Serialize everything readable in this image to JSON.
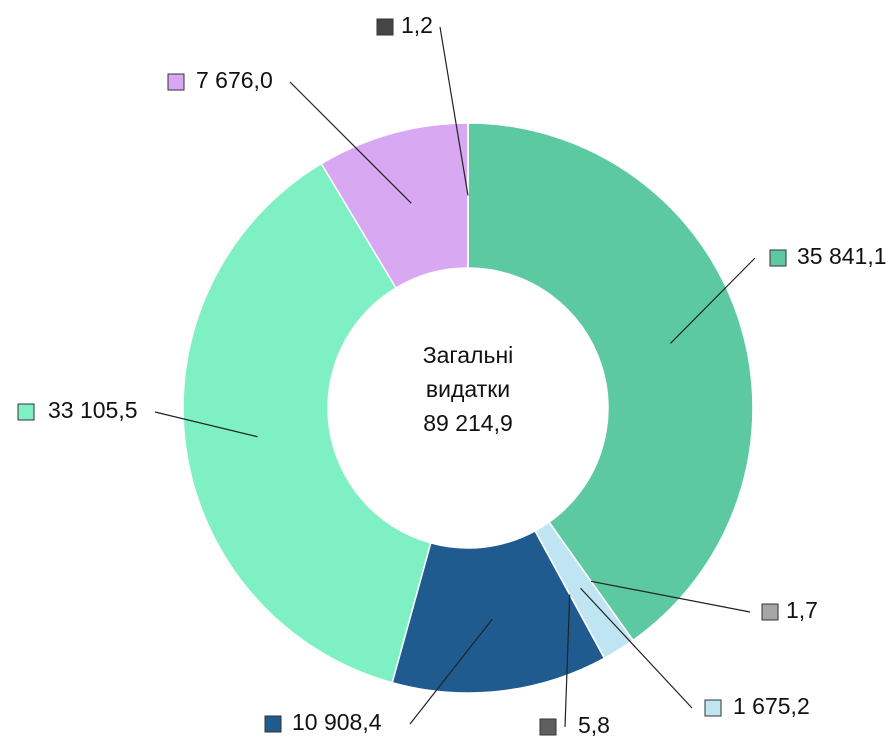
{
  "chart_data": {
    "type": "donut",
    "center_label": [
      "Загальні",
      "видатки",
      "89 214,9"
    ],
    "values": [
      35841.1,
      1.7,
      1675.2,
      5.8,
      10908.4,
      33105.5,
      7676.0,
      1.2
    ],
    "value_labels": [
      "35 841,1",
      "1,7",
      "1 675,2",
      "5,8",
      "10 908,4",
      "33 105,5",
      "7 676,0",
      "1,2"
    ],
    "colors": [
      "#5cc9a1",
      "#a6a6a6",
      "#bfe4f2",
      "#5f5f5f",
      "#1f5b8e",
      "#7ff0c3",
      "#d8a9f2",
      "#454545"
    ]
  }
}
